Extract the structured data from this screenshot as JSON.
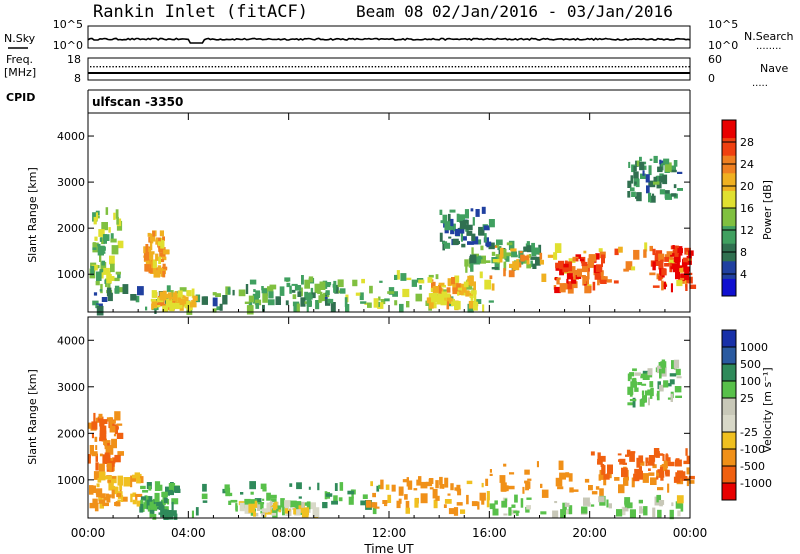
{
  "header": {
    "station": "Rankin Inlet (fitACF)",
    "beam": "Beam 08",
    "date_range": "02/Jan/2016 - 03/Jan/2016",
    "cpid_label": "CPID",
    "cpid_value": "ulfscan -3350"
  },
  "colors": {
    "background": "#ffffff",
    "axis": "#000000",
    "scale_power": [
      "#1010d0",
      "#2040a0",
      "#307050",
      "#40a060",
      "#80c040",
      "#e0e030",
      "#f0b020",
      "#f08020",
      "#f04010",
      "#e80000"
    ],
    "scale_velocity": [
      "#1830a8",
      "#2a5aa0",
      "#2f8a5a",
      "#58c04a",
      "#c8c8b8",
      "#d8d8c8",
      "#f0c020",
      "#f09018",
      "#f06010",
      "#e80000"
    ]
  },
  "panels": {
    "nsky": {
      "left_label": "N.Sky",
      "right_label": "N.Search",
      "left_ticks": [
        "10^5",
        "10^0"
      ],
      "right_ticks": [
        "10^5",
        "10^0"
      ],
      "legend_marker": "........"
    },
    "freq": {
      "left_label_1": "Freq.",
      "left_label_2": "[MHz]",
      "right_label": "Nave",
      "left_ticks": [
        "18",
        "8"
      ],
      "right_ticks": [
        "60",
        "0"
      ],
      "legend_marker": "....."
    }
  },
  "chart_data": [
    {
      "type": "heatmap",
      "title": "",
      "ylabel": "Slant Range [km]",
      "ylim": [
        180,
        4500
      ],
      "y_ticks": [
        "1000",
        "2000",
        "3000",
        "4000"
      ],
      "x_ticks": [
        "00:00",
        "04:00",
        "08:00",
        "12:00",
        "16:00",
        "20:00",
        "00:00"
      ],
      "colorbar": {
        "label": "Power [dB]",
        "range": [
          0,
          32
        ],
        "ticks": [
          "4",
          "8",
          "12",
          "16",
          "20",
          "24",
          "28"
        ]
      },
      "echo_regions": [
        {
          "time_start_h": 0.0,
          "time_end_h": 1.2,
          "range_start_km": 600,
          "range_end_km": 2400,
          "value": 14
        },
        {
          "time_start_h": 2.2,
          "time_end_h": 3.0,
          "range_start_km": 1000,
          "range_end_km": 1900,
          "value": 22
        },
        {
          "time_start_h": 0.0,
          "time_end_h": 10.0,
          "range_start_km": 200,
          "range_end_km": 700,
          "value": 10
        },
        {
          "time_start_h": 2.5,
          "time_end_h": 4.2,
          "range_start_km": 250,
          "range_end_km": 600,
          "value": 20
        },
        {
          "time_start_h": 6.0,
          "time_end_h": 10.0,
          "range_start_km": 250,
          "range_end_km": 900,
          "value": 12
        },
        {
          "time_start_h": 10.0,
          "time_end_h": 16.0,
          "range_start_km": 250,
          "range_end_km": 1000,
          "value": 14
        },
        {
          "time_start_h": 13.5,
          "time_end_h": 15.5,
          "range_start_km": 300,
          "range_end_km": 900,
          "value": 20
        },
        {
          "time_start_h": 15.0,
          "time_end_h": 18.0,
          "range_start_km": 1100,
          "range_end_km": 1700,
          "value": 12
        },
        {
          "time_start_h": 16.0,
          "time_end_h": 24.0,
          "range_start_km": 700,
          "range_end_km": 1600,
          "value": 22
        },
        {
          "time_start_h": 18.5,
          "time_end_h": 20.5,
          "range_start_km": 650,
          "range_end_km": 1400,
          "value": 27
        },
        {
          "time_start_h": 22.5,
          "time_end_h": 24.0,
          "range_start_km": 700,
          "range_end_km": 1600,
          "value": 28
        },
        {
          "time_start_h": 21.5,
          "time_end_h": 23.5,
          "range_start_km": 2600,
          "range_end_km": 3500,
          "value": 9
        },
        {
          "time_start_h": 14.0,
          "time_end_h": 16.0,
          "range_start_km": 1600,
          "range_end_km": 2400,
          "value": 8
        }
      ]
    },
    {
      "type": "heatmap",
      "title": "",
      "ylabel": "Slant Range [km]",
      "xlabel": "Time UT",
      "ylim": [
        180,
        4500
      ],
      "y_ticks": [
        "1000",
        "2000",
        "3000",
        "4000"
      ],
      "x_ticks": [
        "00:00",
        "04:00",
        "08:00",
        "12:00",
        "16:00",
        "20:00",
        "00:00"
      ],
      "colorbar": {
        "label": "Velocity [m s⁻¹]",
        "ticks": [
          "1000",
          "500",
          "100",
          "25",
          "-25",
          "-100",
          "-500",
          "-1000"
        ]
      },
      "echo_regions": [
        {
          "time_start_h": 0.0,
          "time_end_h": 1.2,
          "range_start_km": 1200,
          "range_end_km": 2400,
          "value": -500
        },
        {
          "time_start_h": 0.0,
          "time_end_h": 2.0,
          "range_start_km": 400,
          "range_end_km": 1100,
          "value": -100
        },
        {
          "time_start_h": 2.0,
          "time_end_h": 3.5,
          "range_start_km": 200,
          "range_end_km": 900,
          "value": 100
        },
        {
          "time_start_h": 4.0,
          "time_end_h": 12.0,
          "range_start_km": 200,
          "range_end_km": 900,
          "value": 80
        },
        {
          "time_start_h": 6.0,
          "time_end_h": 9.0,
          "range_start_km": 250,
          "range_end_km": 500,
          "value": 0
        },
        {
          "time_start_h": 11.0,
          "time_end_h": 16.0,
          "range_start_km": 300,
          "range_end_km": 1000,
          "value": -120
        },
        {
          "time_start_h": 16.0,
          "time_end_h": 24.0,
          "range_start_km": 700,
          "range_end_km": 1400,
          "value": -300
        },
        {
          "time_start_h": 20.0,
          "time_end_h": 24.0,
          "range_start_km": 1000,
          "range_end_km": 1600,
          "value": -600
        },
        {
          "time_start_h": 16.0,
          "time_end_h": 24.0,
          "range_start_km": 250,
          "range_end_km": 600,
          "value": 30
        },
        {
          "time_start_h": 21.5,
          "time_end_h": 23.5,
          "range_start_km": 2600,
          "range_end_km": 3500,
          "value": 60
        }
      ]
    }
  ]
}
